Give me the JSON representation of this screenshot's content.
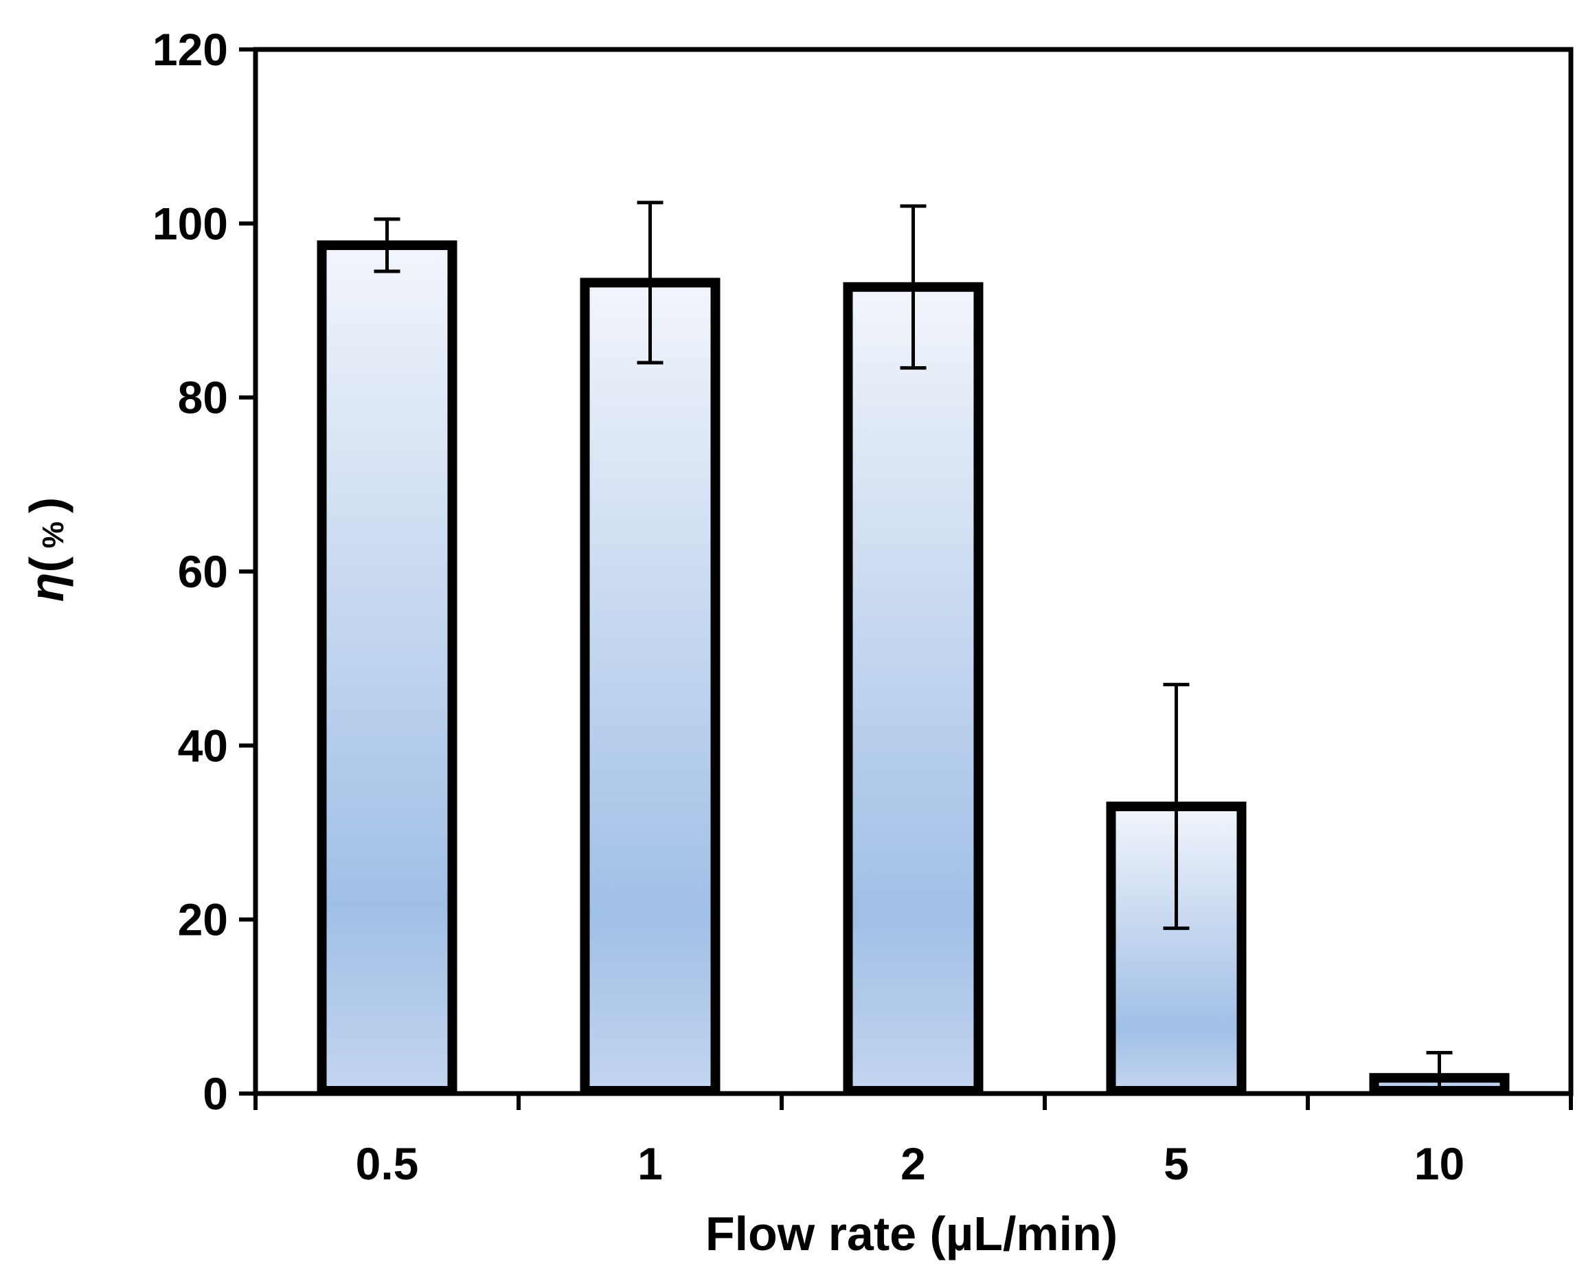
{
  "chart_data": {
    "type": "bar",
    "title": "",
    "xlabel": "Flow rate (µL/min)",
    "ylabel": {
      "symbol": "η",
      "open": "(",
      "unit": "%",
      "close": ")"
    },
    "categories": [
      "0.5",
      "1",
      "2",
      "5",
      "10"
    ],
    "values": [
      97.5,
      93.2,
      92.7,
      33.0,
      1.8
    ],
    "error": [
      3.0,
      9.2,
      9.3,
      14.0,
      2.9
    ],
    "ylim": [
      0,
      120
    ],
    "yticks": [
      "0",
      "20",
      "40",
      "60",
      "80",
      "100",
      "120"
    ],
    "grid": false,
    "legend": "none",
    "colors": {
      "bar_stroke": "#000000",
      "bar_fill_light": "#f2f5fb",
      "bar_fill_dark": "#a0bfe6"
    }
  }
}
